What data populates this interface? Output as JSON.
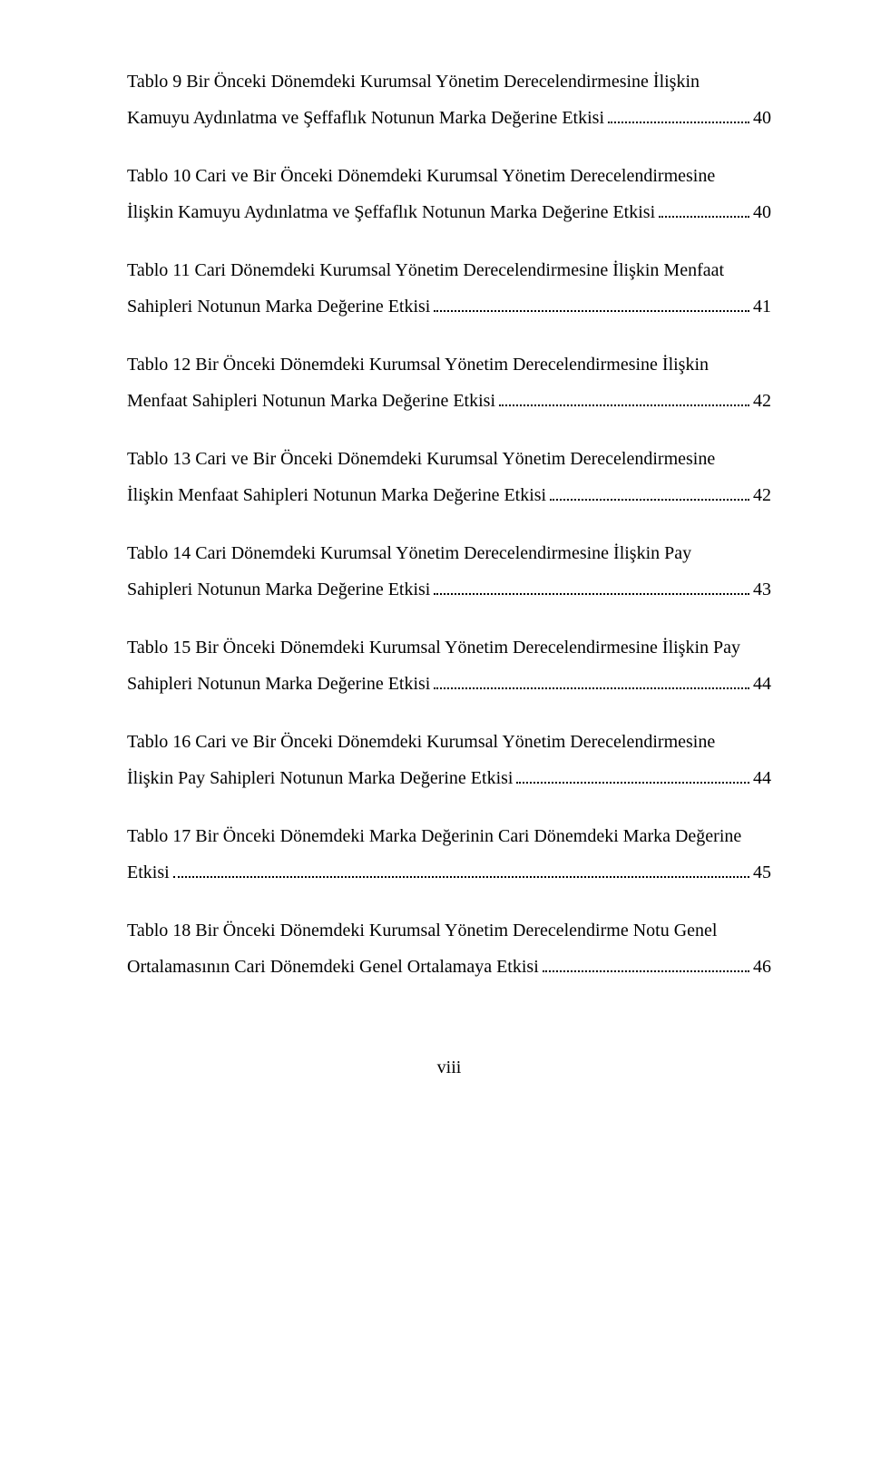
{
  "entries": [
    {
      "line1": "Tablo 9 Bir Önceki Dönemdeki Kurumsal Yönetim Derecelendirmesine İlişkin",
      "last": "Kamuyu Aydınlatma ve Şeffaflık Notunun Marka Değerine Etkisi",
      "page": "40"
    },
    {
      "line1": "Tablo 10 Cari ve Bir Önceki Dönemdeki Kurumsal Yönetim Derecelendirmesine",
      "last": "İlişkin Kamuyu Aydınlatma ve Şeffaflık Notunun Marka Değerine Etkisi",
      "page": "40"
    },
    {
      "line1": "Tablo 11 Cari Dönemdeki Kurumsal Yönetim Derecelendirmesine İlişkin Menfaat",
      "last": "Sahipleri Notunun Marka Değerine Etkisi",
      "page": "41"
    },
    {
      "line1": "Tablo 12 Bir Önceki Dönemdeki Kurumsal Yönetim Derecelendirmesine İlişkin",
      "last": "Menfaat Sahipleri Notunun Marka Değerine Etkisi",
      "page": "42"
    },
    {
      "line1": "Tablo 13 Cari ve Bir Önceki Dönemdeki Kurumsal Yönetim Derecelendirmesine",
      "last": "İlişkin Menfaat Sahipleri Notunun Marka Değerine Etkisi",
      "page": "42"
    },
    {
      "line1": "Tablo 14 Cari Dönemdeki Kurumsal Yönetim Derecelendirmesine İlişkin Pay",
      "last": "Sahipleri Notunun Marka Değerine Etkisi",
      "page": "43"
    },
    {
      "line1": "Tablo 15 Bir Önceki Dönemdeki Kurumsal Yönetim Derecelendirmesine İlişkin Pay",
      "last": "Sahipleri Notunun Marka Değerine Etkisi",
      "page": "44"
    },
    {
      "line1": "Tablo 16 Cari ve Bir Önceki Dönemdeki Kurumsal Yönetim Derecelendirmesine",
      "last": "İlişkin Pay Sahipleri Notunun Marka Değerine Etkisi",
      "page": "44"
    },
    {
      "line1": "Tablo 17 Bir Önceki Dönemdeki Marka Değerinin Cari Dönemdeki Marka Değerine",
      "last": "Etkisi",
      "page": "45"
    },
    {
      "line1": "Tablo 18 Bir Önceki Dönemdeki Kurumsal Yönetim Derecelendirme Notu Genel",
      "last": "Ortalamasının Cari Dönemdeki Genel Ortalamaya Etkisi",
      "page": "46"
    }
  ],
  "footer": "viii"
}
